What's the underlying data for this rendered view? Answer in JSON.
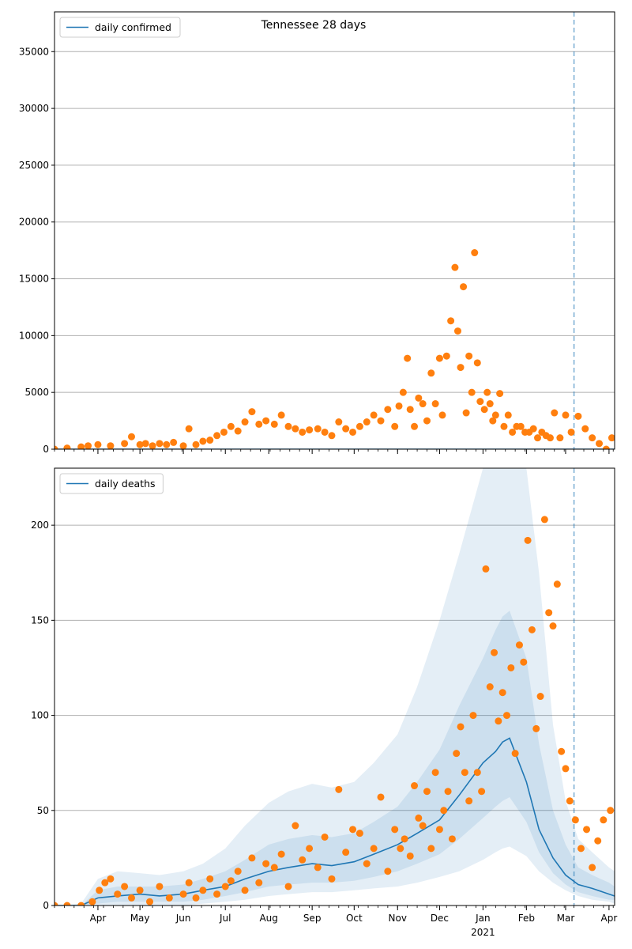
{
  "chart_data": [
    {
      "type": "scatter",
      "title": "Tennessee 28 days",
      "legend": "top-left",
      "legend_entries": [
        "daily confirmed"
      ],
      "grid": "y",
      "ylim": [
        0,
        38500
      ],
      "yticks": [
        0,
        5000,
        10000,
        15000,
        20000,
        25000,
        30000,
        35000
      ],
      "x_range": [
        "2020-03-01",
        "2021-04-05"
      ],
      "vline_date": "2021-03-07",
      "line_color": "#1f77b4",
      "point_color": "#ff7f0e",
      "series": [
        {
          "name": "daily confirmed",
          "style": "line",
          "x": [
            "2020-03-01",
            "2021-04-05"
          ],
          "values": [
            0,
            0
          ]
        },
        {
          "style": "points",
          "x": [
            "2020-03-01",
            "2020-03-10",
            "2020-03-20",
            "2020-03-25",
            "2020-04-01",
            "2020-04-10",
            "2020-04-20",
            "2020-04-25",
            "2020-05-01",
            "2020-05-05",
            "2020-05-10",
            "2020-05-15",
            "2020-05-20",
            "2020-05-25",
            "2020-06-01",
            "2020-06-05",
            "2020-06-10",
            "2020-06-15",
            "2020-06-20",
            "2020-06-25",
            "2020-06-30",
            "2020-07-05",
            "2020-07-10",
            "2020-07-15",
            "2020-07-20",
            "2020-07-25",
            "2020-07-30",
            "2020-08-05",
            "2020-08-10",
            "2020-08-15",
            "2020-08-20",
            "2020-08-25",
            "2020-08-30",
            "2020-09-05",
            "2020-09-10",
            "2020-09-15",
            "2020-09-20",
            "2020-09-25",
            "2020-09-30",
            "2020-10-05",
            "2020-10-10",
            "2020-10-15",
            "2020-10-20",
            "2020-10-25",
            "2020-10-30",
            "2020-11-02",
            "2020-11-05",
            "2020-11-08",
            "2020-11-10",
            "2020-11-13",
            "2020-11-16",
            "2020-11-19",
            "2020-11-22",
            "2020-11-25",
            "2020-11-28",
            "2020-12-01",
            "2020-12-03",
            "2020-12-06",
            "2020-12-09",
            "2020-12-12",
            "2020-12-14",
            "2020-12-16",
            "2020-12-18",
            "2020-12-20",
            "2020-12-22",
            "2020-12-24",
            "2020-12-26",
            "2020-12-28",
            "2020-12-30",
            "2021-01-02",
            "2021-01-04",
            "2021-01-06",
            "2021-01-08",
            "2021-01-10",
            "2021-01-13",
            "2021-01-16",
            "2021-01-19",
            "2021-01-22",
            "2021-01-25",
            "2021-01-28",
            "2021-01-31",
            "2021-02-03",
            "2021-02-06",
            "2021-02-09",
            "2021-02-12",
            "2021-02-15",
            "2021-02-18",
            "2021-02-21",
            "2021-02-25",
            "2021-03-01",
            "2021-03-05",
            "2021-03-10",
            "2021-03-15",
            "2021-03-20",
            "2021-03-25",
            "2021-03-30",
            "2021-04-03"
          ],
          "values": [
            0,
            100,
            200,
            300,
            400,
            300,
            500,
            1100,
            400,
            500,
            300,
            500,
            400,
            600,
            300,
            1800,
            400,
            700,
            800,
            1200,
            1500,
            2000,
            1600,
            2400,
            3300,
            2200,
            2500,
            2200,
            3000,
            2000,
            1800,
            1500,
            1700,
            1800,
            1500,
            1200,
            2400,
            1800,
            1500,
            2000,
            2400,
            3000,
            2500,
            3500,
            2000,
            3800,
            5000,
            8000,
            3500,
            2000,
            4500,
            4000,
            2500,
            6700,
            4000,
            8000,
            3000,
            8200,
            11300,
            16000,
            10400,
            7200,
            14300,
            3200,
            8200,
            5000,
            17300,
            7600,
            4200,
            3500,
            5000,
            4000,
            2500,
            3000,
            4900,
            2000,
            3000,
            1500,
            2000,
            2000,
            1500,
            1500,
            1800,
            1000,
            1500,
            1200,
            1000,
            3200,
            1000,
            3000,
            1500,
            2900,
            1800,
            1000,
            500,
            0,
            1000
          ]
        }
      ]
    },
    {
      "type": "line",
      "title": "",
      "legend": "top-left",
      "legend_entries": [
        "daily deaths"
      ],
      "grid": "y",
      "ylim": [
        0,
        230
      ],
      "yticks": [
        0,
        50,
        100,
        150,
        200
      ],
      "x_range": [
        "2020-03-01",
        "2021-04-05"
      ],
      "vline_date": "2021-03-07",
      "line_color": "#1f77b4",
      "point_color": "#ff7f0e",
      "band_color": "#1f77b4",
      "xticks": [
        "Apr",
        "May",
        "Jun",
        "Jul",
        "Aug",
        "Sep",
        "Oct",
        "Nov",
        "Dec",
        "Jan",
        "Feb",
        "Mar",
        "Apr"
      ],
      "xticks_dates": [
        "2020-04-01",
        "2020-05-01",
        "2020-06-01",
        "2020-07-01",
        "2020-08-01",
        "2020-09-01",
        "2020-10-01",
        "2020-11-01",
        "2020-12-01",
        "2021-01-01",
        "2021-02-01",
        "2021-03-01",
        "2021-04-01"
      ],
      "year_label": "2021",
      "series": [
        {
          "name": "daily deaths",
          "style": "line",
          "x": [
            "2020-03-01",
            "2020-03-20",
            "2020-04-01",
            "2020-04-15",
            "2020-05-01",
            "2020-05-15",
            "2020-06-01",
            "2020-06-15",
            "2020-07-01",
            "2020-07-15",
            "2020-08-01",
            "2020-08-15",
            "2020-09-01",
            "2020-09-15",
            "2020-10-01",
            "2020-10-15",
            "2020-11-01",
            "2020-11-15",
            "2020-12-01",
            "2020-12-15",
            "2021-01-01",
            "2021-01-10",
            "2021-01-15",
            "2021-01-20",
            "2021-02-01",
            "2021-02-10",
            "2021-02-20",
            "2021-03-01",
            "2021-03-10",
            "2021-03-20",
            "2021-04-01",
            "2021-04-05"
          ],
          "values": [
            0,
            0,
            4,
            5,
            6,
            5,
            6,
            8,
            10,
            14,
            18,
            20,
            22,
            21,
            23,
            27,
            32,
            38,
            45,
            58,
            75,
            81,
            86,
            88,
            65,
            40,
            25,
            16,
            11,
            9,
            6,
            5
          ]
        },
        {
          "name": "band-outer",
          "style": "band",
          "x": [
            "2020-03-01",
            "2020-03-20",
            "2020-04-01",
            "2020-04-15",
            "2020-05-01",
            "2020-05-15",
            "2020-06-01",
            "2020-06-15",
            "2020-07-01",
            "2020-07-15",
            "2020-08-01",
            "2020-08-15",
            "2020-09-01",
            "2020-09-15",
            "2020-10-01",
            "2020-10-15",
            "2020-11-01",
            "2020-11-15",
            "2020-12-01",
            "2020-12-15",
            "2021-01-01",
            "2021-01-10",
            "2021-01-15",
            "2021-01-20",
            "2021-02-01",
            "2021-02-10",
            "2021-02-20",
            "2021-03-01",
            "2021-03-10",
            "2021-03-20",
            "2021-04-01",
            "2021-04-05"
          ],
          "lower": [
            0,
            0,
            0,
            0,
            0,
            0,
            0,
            1,
            2,
            3,
            5,
            6,
            7,
            7,
            8,
            9,
            10,
            12,
            15,
            18,
            24,
            28,
            30,
            31,
            26,
            18,
            12,
            8,
            5,
            3,
            2,
            1
          ],
          "upper": [
            0,
            1,
            14,
            18,
            17,
            16,
            18,
            22,
            30,
            42,
            54,
            60,
            64,
            62,
            65,
            75,
            90,
            115,
            150,
            185,
            230,
            230,
            230,
            230,
            230,
            175,
            95,
            55,
            35,
            28,
            20,
            18
          ]
        },
        {
          "name": "band-inner",
          "style": "band",
          "x": [
            "2020-03-01",
            "2020-03-20",
            "2020-04-01",
            "2020-04-15",
            "2020-05-01",
            "2020-05-15",
            "2020-06-01",
            "2020-06-15",
            "2020-07-01",
            "2020-07-15",
            "2020-08-01",
            "2020-08-15",
            "2020-09-01",
            "2020-09-15",
            "2020-10-01",
            "2020-10-15",
            "2020-11-01",
            "2020-11-15",
            "2020-12-01",
            "2020-12-15",
            "2021-01-01",
            "2021-01-10",
            "2021-01-15",
            "2021-01-20",
            "2021-02-01",
            "2021-02-10",
            "2021-02-20",
            "2021-03-01",
            "2021-03-10",
            "2021-03-20",
            "2021-04-01",
            "2021-04-05"
          ],
          "lower": [
            0,
            0,
            1,
            2,
            2,
            2,
            2,
            3,
            5,
            7,
            10,
            11,
            12,
            12,
            13,
            15,
            18,
            22,
            27,
            35,
            46,
            52,
            55,
            57,
            44,
            28,
            17,
            11,
            7,
            5,
            3,
            3
          ],
          "upper": [
            0,
            0,
            8,
            10,
            10,
            10,
            11,
            14,
            18,
            24,
            32,
            35,
            37,
            36,
            38,
            44,
            52,
            65,
            82,
            105,
            130,
            145,
            152,
            155,
            130,
            85,
            50,
            32,
            20,
            16,
            12,
            10
          ]
        },
        {
          "style": "points",
          "x": [
            "2020-03-01",
            "2020-03-10",
            "2020-03-20",
            "2020-03-28",
            "2020-04-02",
            "2020-04-06",
            "2020-04-10",
            "2020-04-15",
            "2020-04-20",
            "2020-04-25",
            "2020-05-01",
            "2020-05-08",
            "2020-05-15",
            "2020-05-22",
            "2020-06-01",
            "2020-06-05",
            "2020-06-10",
            "2020-06-15",
            "2020-06-20",
            "2020-06-25",
            "2020-07-01",
            "2020-07-05",
            "2020-07-10",
            "2020-07-15",
            "2020-07-20",
            "2020-07-25",
            "2020-07-30",
            "2020-08-05",
            "2020-08-10",
            "2020-08-15",
            "2020-08-20",
            "2020-08-25",
            "2020-08-30",
            "2020-09-05",
            "2020-09-10",
            "2020-09-15",
            "2020-09-20",
            "2020-09-25",
            "2020-09-30",
            "2020-10-05",
            "2020-10-10",
            "2020-10-15",
            "2020-10-20",
            "2020-10-25",
            "2020-10-30",
            "2020-11-03",
            "2020-11-06",
            "2020-11-10",
            "2020-11-13",
            "2020-11-16",
            "2020-11-19",
            "2020-11-22",
            "2020-11-25",
            "2020-11-28",
            "2020-12-01",
            "2020-12-04",
            "2020-12-07",
            "2020-12-10",
            "2020-12-13",
            "2020-12-16",
            "2020-12-19",
            "2020-12-22",
            "2020-12-25",
            "2020-12-28",
            "2020-12-31",
            "2021-01-03",
            "2021-01-06",
            "2021-01-09",
            "2021-01-12",
            "2021-01-15",
            "2021-01-18",
            "2021-01-21",
            "2021-01-24",
            "2021-01-27",
            "2021-01-30",
            "2021-02-02",
            "2021-02-05",
            "2021-02-08",
            "2021-02-11",
            "2021-02-14",
            "2021-02-17",
            "2021-02-20",
            "2021-02-23",
            "2021-02-26",
            "2021-03-01",
            "2021-03-04",
            "2021-03-08",
            "2021-03-12",
            "2021-03-16",
            "2021-03-20",
            "2021-03-24",
            "2021-03-28",
            "2021-04-02"
          ],
          "values": [
            0,
            0,
            0,
            2,
            8,
            12,
            14,
            6,
            10,
            4,
            8,
            2,
            10,
            4,
            6,
            12,
            4,
            8,
            14,
            6,
            10,
            13,
            18,
            8,
            25,
            12,
            22,
            20,
            27,
            10,
            42,
            24,
            30,
            20,
            36,
            14,
            61,
            28,
            40,
            38,
            22,
            30,
            57,
            18,
            40,
            30,
            35,
            26,
            63,
            46,
            42,
            60,
            30,
            70,
            40,
            50,
            60,
            35,
            80,
            94,
            70,
            55,
            100,
            70,
            60,
            177,
            115,
            133,
            97,
            112,
            100,
            125,
            80,
            137,
            128,
            192,
            145,
            93,
            110,
            203,
            154,
            147,
            169,
            81,
            72,
            55,
            45,
            30,
            40,
            20,
            34,
            45,
            50
          ]
        }
      ]
    }
  ]
}
